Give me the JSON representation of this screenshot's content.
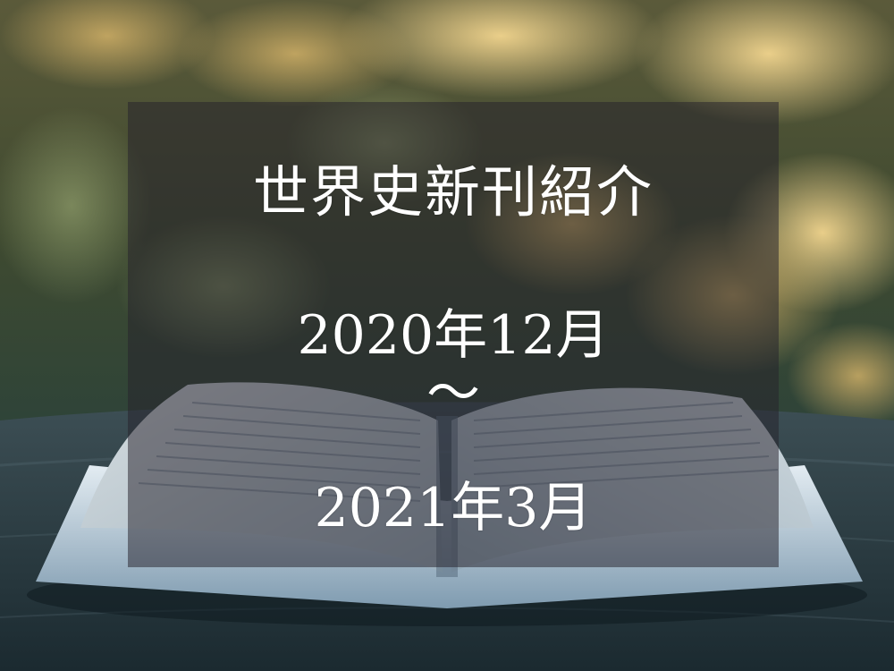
{
  "title": {
    "line1": "世界史新刊紹介",
    "line2": "2020年12月",
    "line3": "～",
    "line4": "2021年3月"
  },
  "photo": {
    "subject": "open-book-on-wooden-table",
    "colors": {
      "bokeh_warm": "#e8c27a",
      "foliage": "#3a4a2e",
      "book_page": "#c9d4da",
      "table": "#2c3b40",
      "overlay": "#26222c"
    }
  }
}
